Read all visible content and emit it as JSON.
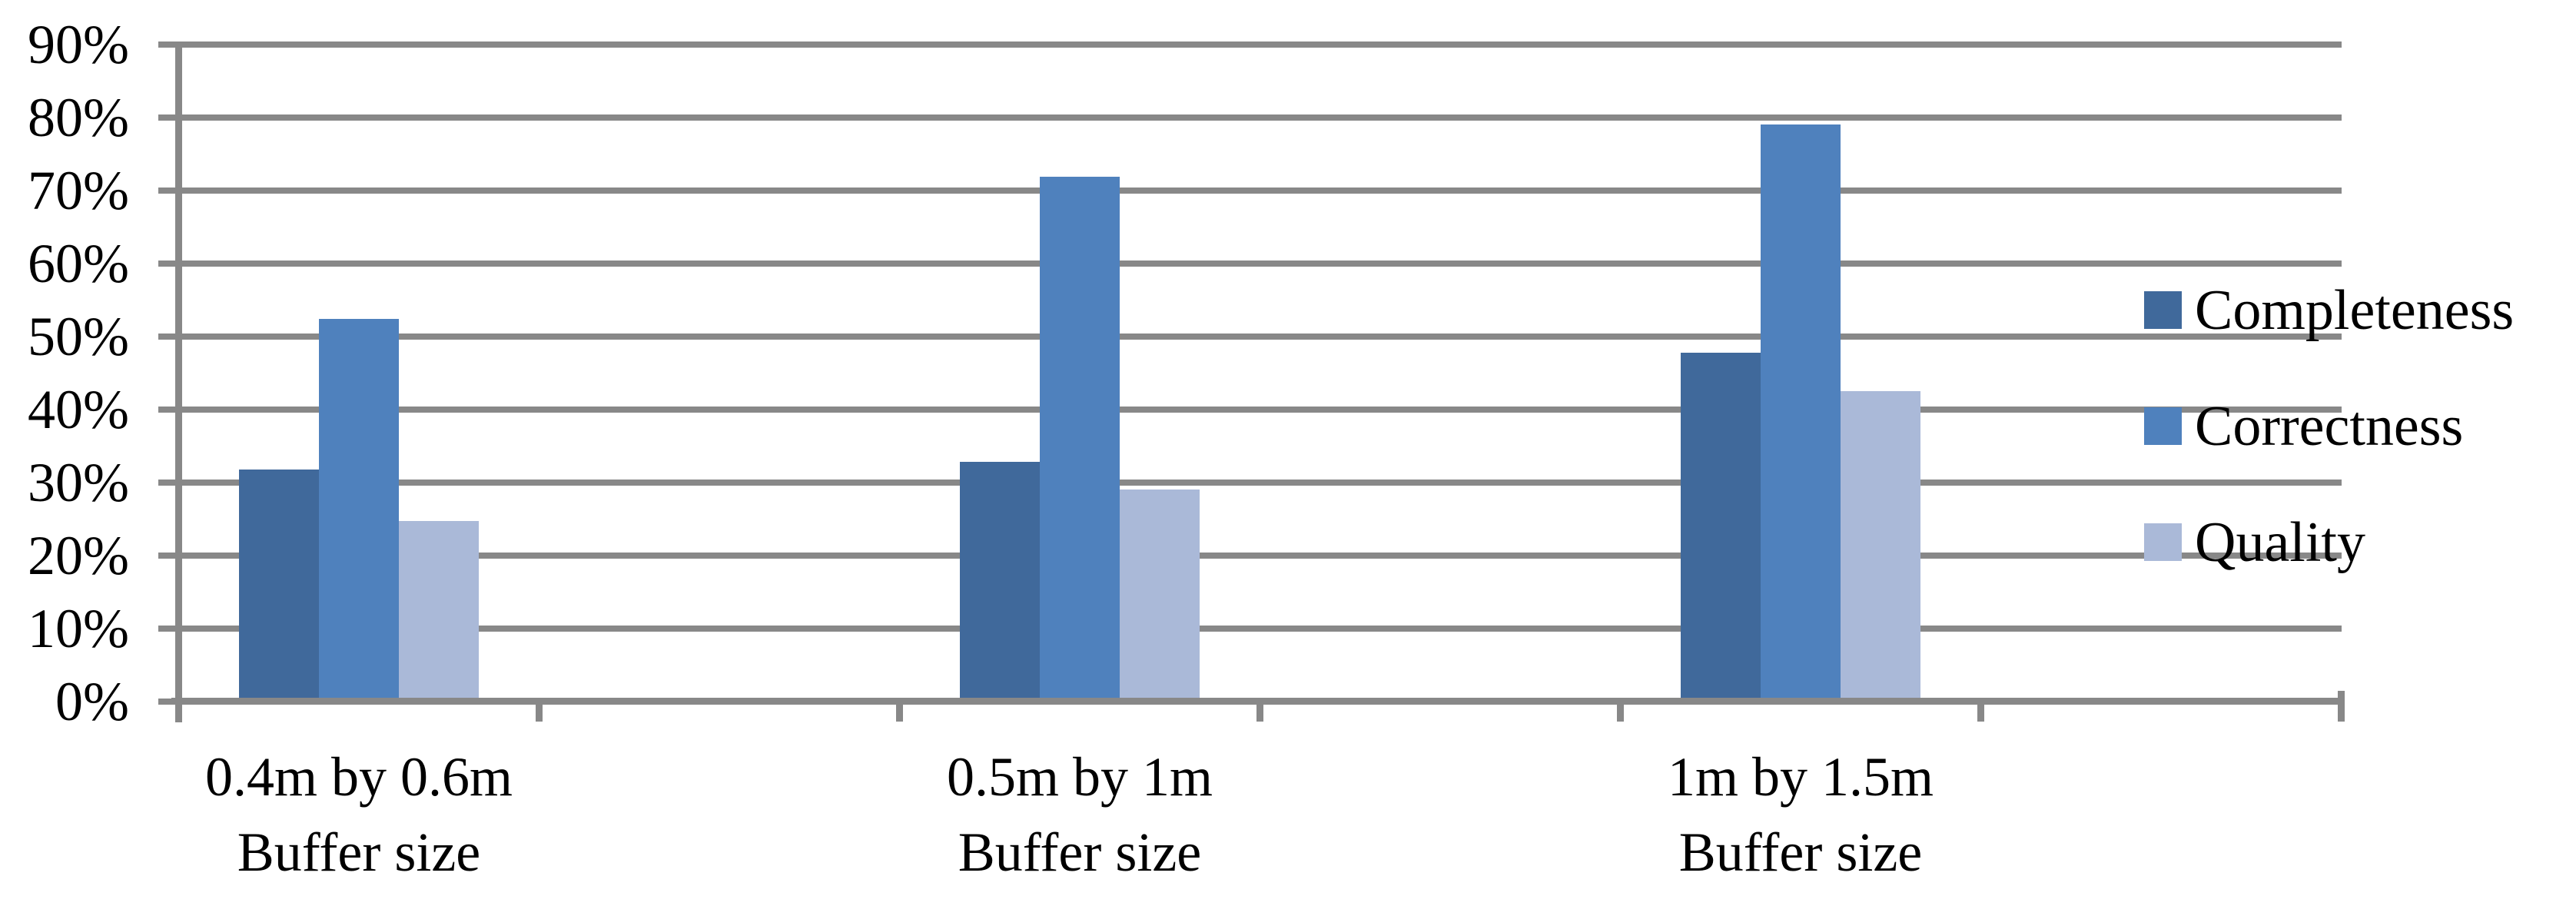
{
  "chart_data": {
    "type": "bar",
    "title": "",
    "xlabel": "",
    "ylabel": "",
    "categories": [
      "0.4m by 0.6m",
      "0.5m by 1m",
      "1m by 1.5m"
    ],
    "category_sublabel": "Buffer size",
    "series": [
      {
        "name": "Completeness",
        "color": "#40699B",
        "values": [
          31.7,
          32.8,
          47.7
        ]
      },
      {
        "name": "Correctness",
        "color": "#4F81BD",
        "values": [
          52.4,
          71.8,
          79.0
        ]
      },
      {
        "name": "Quality",
        "color": "#AAB9D8",
        "values": [
          24.7,
          29.0,
          42.5
        ]
      }
    ],
    "ylim": [
      0,
      90
    ],
    "ytick_step": 10,
    "ytick_labels": [
      "0%",
      "10%",
      "20%",
      "30%",
      "40%",
      "50%",
      "60%",
      "70%",
      "80%",
      "90%"
    ],
    "grid": true,
    "legend_position": "right",
    "gridline_color": "#888888",
    "axis_color": "#888888",
    "text_color": "#000000",
    "background_color": "#ffffff"
  }
}
